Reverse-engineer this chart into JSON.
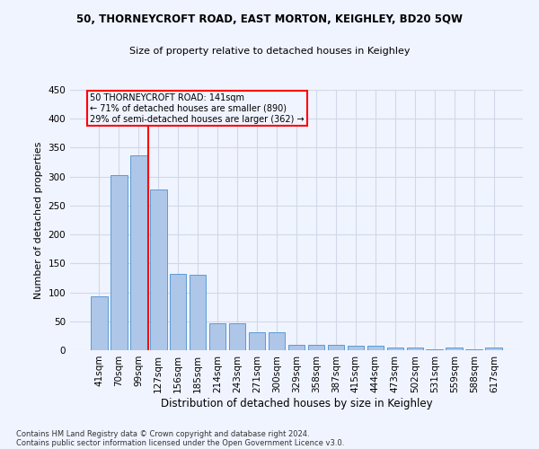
{
  "title_line1": "50, THORNEYCROFT ROAD, EAST MORTON, KEIGHLEY, BD20 5QW",
  "title_line2": "Size of property relative to detached houses in Keighley",
  "xlabel": "Distribution of detached houses by size in Keighley",
  "ylabel": "Number of detached properties",
  "categories": [
    "41sqm",
    "70sqm",
    "99sqm",
    "127sqm",
    "156sqm",
    "185sqm",
    "214sqm",
    "243sqm",
    "271sqm",
    "300sqm",
    "329sqm",
    "358sqm",
    "387sqm",
    "415sqm",
    "444sqm",
    "473sqm",
    "502sqm",
    "531sqm",
    "559sqm",
    "588sqm",
    "617sqm"
  ],
  "values": [
    93,
    303,
    337,
    278,
    132,
    131,
    46,
    46,
    31,
    31,
    9,
    10,
    9,
    8,
    8,
    5,
    4,
    2,
    4,
    2,
    4
  ],
  "bar_color": "#aec6e8",
  "bar_edge_color": "#5b9bd5",
  "grid_color": "#d0d8e8",
  "annotation_line_color": "red",
  "annotation_box_text": "50 THORNEYCROFT ROAD: 141sqm\n← 71% of detached houses are smaller (890)\n29% of semi-detached houses are larger (362) →",
  "annotation_box_color": "red",
  "ylim": [
    0,
    450
  ],
  "yticks": [
    0,
    50,
    100,
    150,
    200,
    250,
    300,
    350,
    400,
    450
  ],
  "footer_line1": "Contains HM Land Registry data © Crown copyright and database right 2024.",
  "footer_line2": "Contains public sector information licensed under the Open Government Licence v3.0.",
  "background_color": "#f0f4ff"
}
